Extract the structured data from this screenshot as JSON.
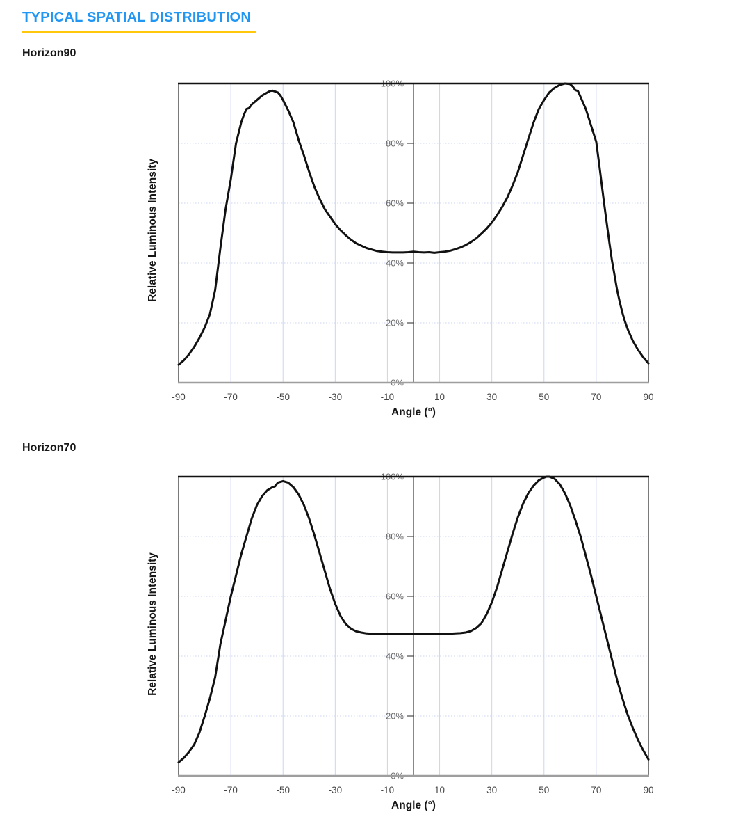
{
  "header": {
    "title": "TYPICAL SPATIAL DISTRIBUTION",
    "title_color": "#2196F3",
    "underline_color": "#FFC80B"
  },
  "chart_data": [
    {
      "type": "line",
      "heading": "Horizon90",
      "title": "Horizon90",
      "xlabel": "Angle (°)",
      "ylabel": "Relative Luminous Intensity",
      "xlim": [
        -90,
        90
      ],
      "ylim": [
        0,
        100
      ],
      "x_ticks": [
        -90,
        -70,
        -50,
        -30,
        -10,
        10,
        30,
        50,
        70,
        90
      ],
      "y_ticks": [
        0,
        20,
        40,
        60,
        80,
        100
      ],
      "y_tick_suffix": "%",
      "grid": true,
      "legend": "none",
      "grid_color": "#cdd4f0",
      "line_color": "#111111",
      "axis_color": "#4a4a4a",
      "bottom_axis_color": "#9e9e9e",
      "series": [
        {
          "name": "relative-luminous-intensity",
          "points": [
            [
              -90,
              6
            ],
            [
              -88,
              7.5
            ],
            [
              -86,
              9.5
            ],
            [
              -84,
              12
            ],
            [
              -82,
              15
            ],
            [
              -80,
              18.5
            ],
            [
              -78,
              23
            ],
            [
              -76,
              31
            ],
            [
              -74,
              45
            ],
            [
              -72,
              58
            ],
            [
              -70,
              68
            ],
            [
              -68,
              80
            ],
            [
              -66,
              87
            ],
            [
              -65,
              89.5
            ],
            [
              -64,
              91.5
            ],
            [
              -63,
              91.8
            ],
            [
              -62,
              93
            ],
            [
              -60,
              94.5
            ],
            [
              -58,
              96
            ],
            [
              -56,
              97
            ],
            [
              -55,
              97.5
            ],
            [
              -54,
              97.6
            ],
            [
              -53,
              97.3
            ],
            [
              -52,
              97
            ],
            [
              -51,
              96
            ],
            [
              -50,
              94.5
            ],
            [
              -48,
              91
            ],
            [
              -46,
              87
            ],
            [
              -44,
              81
            ],
            [
              -42,
              76
            ],
            [
              -40,
              70.5
            ],
            [
              -38,
              65.5
            ],
            [
              -36,
              61.5
            ],
            [
              -34,
              58
            ],
            [
              -32,
              55.5
            ],
            [
              -30,
              53
            ],
            [
              -28,
              51
            ],
            [
              -26,
              49.3
            ],
            [
              -24,
              47.8
            ],
            [
              -22,
              46.6
            ],
            [
              -20,
              45.8
            ],
            [
              -18,
              45
            ],
            [
              -16,
              44.5
            ],
            [
              -14,
              44
            ],
            [
              -12,
              43.8
            ],
            [
              -10,
              43.6
            ],
            [
              -8,
              43.5
            ],
            [
              -6,
              43.5
            ],
            [
              -4,
              43.5
            ],
            [
              -2,
              43.6
            ],
            [
              0,
              43.8
            ],
            [
              2,
              43.6
            ],
            [
              4,
              43.5
            ],
            [
              6,
              43.6
            ],
            [
              8,
              43.4
            ],
            [
              10,
              43.6
            ],
            [
              12,
              43.8
            ],
            [
              14,
              44.1
            ],
            [
              16,
              44.6
            ],
            [
              18,
              45.2
            ],
            [
              20,
              46
            ],
            [
              22,
              47
            ],
            [
              24,
              48.2
            ],
            [
              26,
              49.8
            ],
            [
              28,
              51.5
            ],
            [
              30,
              53.5
            ],
            [
              32,
              56
            ],
            [
              34,
              58.8
            ],
            [
              36,
              62
            ],
            [
              38,
              66
            ],
            [
              40,
              70.5
            ],
            [
              42,
              76
            ],
            [
              44,
              81.5
            ],
            [
              46,
              87
            ],
            [
              48,
              91.5
            ],
            [
              50,
              94.5
            ],
            [
              52,
              97
            ],
            [
              54,
              98.5
            ],
            [
              56,
              99.5
            ],
            [
              58,
              100
            ],
            [
              60,
              99.8
            ],
            [
              61,
              99
            ],
            [
              62,
              97.8
            ],
            [
              63,
              97.5
            ],
            [
              64,
              95.5
            ],
            [
              66,
              91.5
            ],
            [
              68,
              86
            ],
            [
              70,
              80.5
            ],
            [
              71,
              74
            ],
            [
              72,
              67
            ],
            [
              73,
              60
            ],
            [
              74,
              53.5
            ],
            [
              75,
              47
            ],
            [
              76,
              41
            ],
            [
              77,
              36
            ],
            [
              78,
              31
            ],
            [
              79,
              27
            ],
            [
              80,
              23.5
            ],
            [
              81,
              20.5
            ],
            [
              82,
              18
            ],
            [
              84,
              14
            ],
            [
              86,
              11
            ],
            [
              88,
              8.5
            ],
            [
              90,
              6.5
            ]
          ]
        }
      ]
    },
    {
      "type": "line",
      "heading": "Horizon70",
      "title": "Horizon70",
      "xlabel": "Angle (°)",
      "ylabel": "Relative Luminous Intensity",
      "xlim": [
        -90,
        90
      ],
      "ylim": [
        0,
        100
      ],
      "x_ticks": [
        -90,
        -70,
        -50,
        -30,
        -10,
        10,
        30,
        50,
        70,
        90
      ],
      "y_ticks": [
        0,
        20,
        40,
        60,
        80,
        100
      ],
      "y_tick_suffix": "%",
      "grid": true,
      "legend": "none",
      "grid_color": "#cdd4f0",
      "line_color": "#111111",
      "axis_color": "#4a4a4a",
      "bottom_axis_color": "#9e9e9e",
      "series": [
        {
          "name": "relative-luminous-intensity",
          "points": [
            [
              -90,
              4.5
            ],
            [
              -88,
              6
            ],
            [
              -86,
              8
            ],
            [
              -84,
              10.5
            ],
            [
              -82,
              14.5
            ],
            [
              -80,
              20
            ],
            [
              -78,
              26
            ],
            [
              -76,
              33
            ],
            [
              -74,
              44
            ],
            [
              -72,
              52
            ],
            [
              -70,
              60
            ],
            [
              -68,
              67
            ],
            [
              -66,
              74
            ],
            [
              -64,
              80
            ],
            [
              -62,
              86
            ],
            [
              -60,
              90.5
            ],
            [
              -58,
              93.5
            ],
            [
              -56,
              95.5
            ],
            [
              -54,
              96.5
            ],
            [
              -53,
              96.8
            ],
            [
              -52,
              98
            ],
            [
              -50,
              98.5
            ],
            [
              -48,
              98
            ],
            [
              -46,
              96.5
            ],
            [
              -44,
              94
            ],
            [
              -42,
              90.5
            ],
            [
              -40,
              86
            ],
            [
              -38,
              80.5
            ],
            [
              -36,
              74.5
            ],
            [
              -34,
              68.5
            ],
            [
              -32,
              62.5
            ],
            [
              -30,
              57.5
            ],
            [
              -28,
              53.5
            ],
            [
              -26,
              50.8
            ],
            [
              -24,
              49.2
            ],
            [
              -22,
              48.3
            ],
            [
              -20,
              47.9
            ],
            [
              -18,
              47.6
            ],
            [
              -16,
              47.5
            ],
            [
              -14,
              47.5
            ],
            [
              -12,
              47.4
            ],
            [
              -10,
              47.5
            ],
            [
              -8,
              47.4
            ],
            [
              -6,
              47.5
            ],
            [
              -4,
              47.5
            ],
            [
              -2,
              47.4
            ],
            [
              0,
              47.5
            ],
            [
              2,
              47.5
            ],
            [
              4,
              47.4
            ],
            [
              6,
              47.5
            ],
            [
              8,
              47.5
            ],
            [
              10,
              47.4
            ],
            [
              12,
              47.5
            ],
            [
              14,
              47.5
            ],
            [
              16,
              47.6
            ],
            [
              18,
              47.7
            ],
            [
              20,
              47.9
            ],
            [
              22,
              48.4
            ],
            [
              24,
              49.4
            ],
            [
              26,
              51
            ],
            [
              28,
              54
            ],
            [
              30,
              58
            ],
            [
              32,
              63
            ],
            [
              34,
              69
            ],
            [
              36,
              75
            ],
            [
              38,
              81
            ],
            [
              40,
              86.5
            ],
            [
              42,
              91
            ],
            [
              44,
              94.5
            ],
            [
              46,
              97
            ],
            [
              48,
              98.8
            ],
            [
              50,
              99.7
            ],
            [
              51,
              100
            ],
            [
              52,
              100
            ],
            [
              54,
              99.3
            ],
            [
              56,
              97.5
            ],
            [
              58,
              94.5
            ],
            [
              60,
              90.5
            ],
            [
              62,
              85.5
            ],
            [
              64,
              80
            ],
            [
              66,
              73.5
            ],
            [
              68,
              67
            ],
            [
              70,
              60
            ],
            [
              72,
              53
            ],
            [
              74,
              46
            ],
            [
              76,
              39
            ],
            [
              78,
              32
            ],
            [
              80,
              26
            ],
            [
              82,
              20.5
            ],
            [
              84,
              16
            ],
            [
              86,
              12
            ],
            [
              88,
              8.5
            ],
            [
              90,
              5.5
            ]
          ]
        }
      ]
    }
  ]
}
